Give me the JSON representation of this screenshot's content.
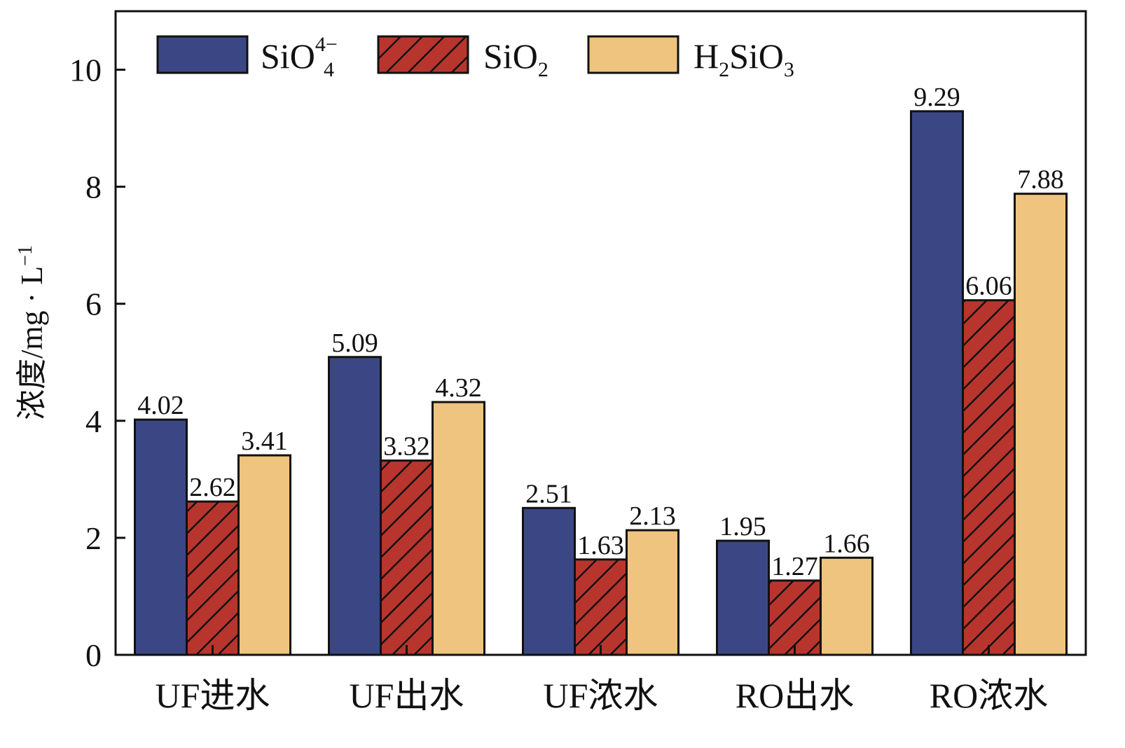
{
  "chart_data": {
    "type": "bar",
    "title": "",
    "xlabel": "",
    "ylabel": "浓度/mg · L",
    "ylabel_sup": "−1",
    "ylim": [
      0,
      11
    ],
    "yticks": [
      0,
      2,
      4,
      6,
      8,
      10
    ],
    "grid": false,
    "legend_position": "top-left",
    "categories": [
      "UF进水",
      "UF出水",
      "UF浓水",
      "RO出水",
      "RO浓水"
    ],
    "series": [
      {
        "name": "SiO4 4−",
        "legend_base": "SiO",
        "legend_sub": "4",
        "legend_sup": "4−",
        "color": "#3b4784",
        "pattern": "solid",
        "values": [
          4.02,
          5.09,
          2.51,
          1.95,
          9.29
        ],
        "labels": [
          "4.02",
          "5.09",
          "2.51",
          "1.95",
          "9.29"
        ]
      },
      {
        "name": "SiO2",
        "legend_base": "SiO",
        "legend_sub": "2",
        "color": "#b8352d",
        "pattern": "hatch",
        "values": [
          2.62,
          3.32,
          1.63,
          1.27,
          6.06
        ],
        "labels": [
          "2.62",
          "3.32",
          "1.63",
          "1.27",
          "6.06"
        ]
      },
      {
        "name": "H2SiO3",
        "legend_pre": "H",
        "legend_sub1": "2",
        "legend_mid": "SiO",
        "legend_sub2": "3",
        "color": "#efc47e",
        "pattern": "solid",
        "values": [
          3.41,
          4.32,
          2.13,
          1.66,
          7.88
        ],
        "labels": [
          "3.41",
          "4.32",
          "2.13",
          "1.66",
          "7.88"
        ]
      }
    ]
  }
}
